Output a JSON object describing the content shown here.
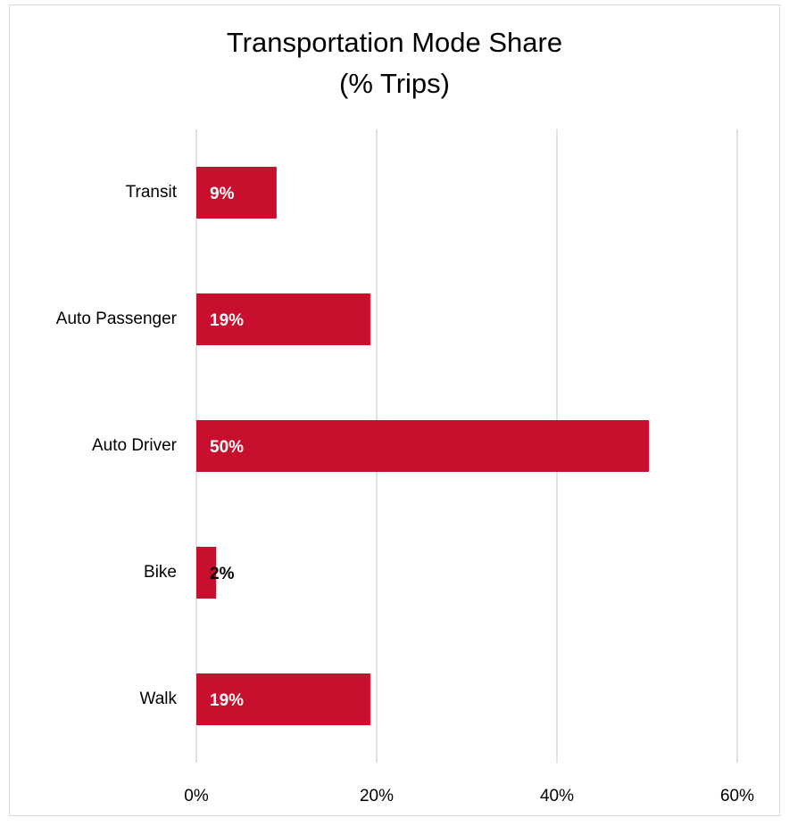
{
  "chart_data": {
    "type": "bar",
    "orientation": "horizontal",
    "title": "Transportation Mode Share",
    "subtitle": "(% Trips)",
    "categories": [
      "Transit",
      "Auto Passenger",
      "Auto Driver",
      "Bike",
      "Walk"
    ],
    "values": [
      8.9,
      19.3,
      50.2,
      2.2,
      19.3
    ],
    "value_labels": [
      "9%",
      "19%",
      "50%",
      "2%",
      "19%"
    ],
    "color": "#c8102e",
    "xlim": [
      0,
      60
    ],
    "xticks": [
      {
        "value": 0,
        "label": "0%"
      },
      {
        "value": 20,
        "label": "20%"
      },
      {
        "value": 40,
        "label": "40%"
      },
      {
        "value": 60,
        "label": "60%"
      }
    ],
    "grid": true
  }
}
